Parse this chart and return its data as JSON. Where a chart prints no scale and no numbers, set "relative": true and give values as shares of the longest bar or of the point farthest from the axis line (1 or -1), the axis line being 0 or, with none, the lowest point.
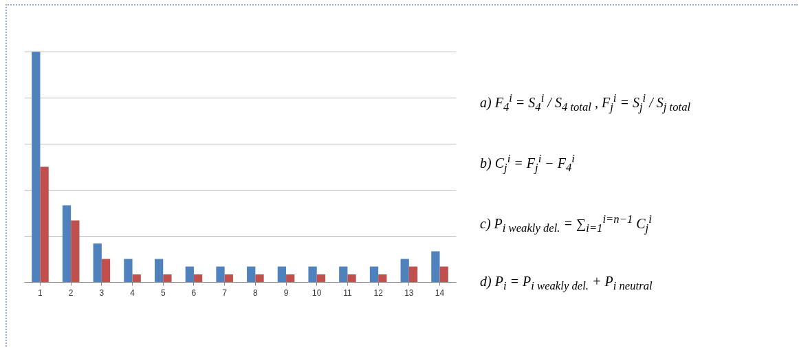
{
  "chart_data": {
    "type": "bar",
    "relative": true,
    "grid": "y",
    "legend": false,
    "categories": [
      "1",
      "2",
      "3",
      "4",
      "5",
      "6",
      "7",
      "8",
      "9",
      "10",
      "11",
      "12",
      "13",
      "14"
    ],
    "series": [
      {
        "color": "#4f81bd",
        "values": [
          1,
          0.333,
          0.167,
          0.1,
          0.1,
          0.067,
          0.067,
          0.067,
          0.067,
          0.067,
          0.067,
          0.067,
          0.1,
          0.133
        ]
      },
      {
        "color": "#c0504d",
        "values": [
          0.5,
          0.267,
          0.1,
          0.033,
          0.033,
          0.033,
          0.033,
          0.033,
          0.033,
          0.033,
          0.033,
          0.033,
          0.067,
          0.067
        ]
      }
    ],
    "annotations": [
      "a)  F$_{4}$$^{i}$ = S$_{4}$$^{i}$ / S$_{4 total}$   ,  F$_{j}$$^{i}$ = S$_{j}$$^{i}$ / S$_{j total}$",
      "b)  C$_{j}$$^{i}$ = F$_{j}$$^{i}$ − F$_{4}$$^{i}$",
      "c)  P$_{i weakly del.}$ = ∑$_{i=1}$$^{i=n−1}$ C$_{j}$$^{i}$",
      "d)  P$_{i}$ = P$_{i weakly del.}$ + P$_{i neutral}$"
    ]
  }
}
